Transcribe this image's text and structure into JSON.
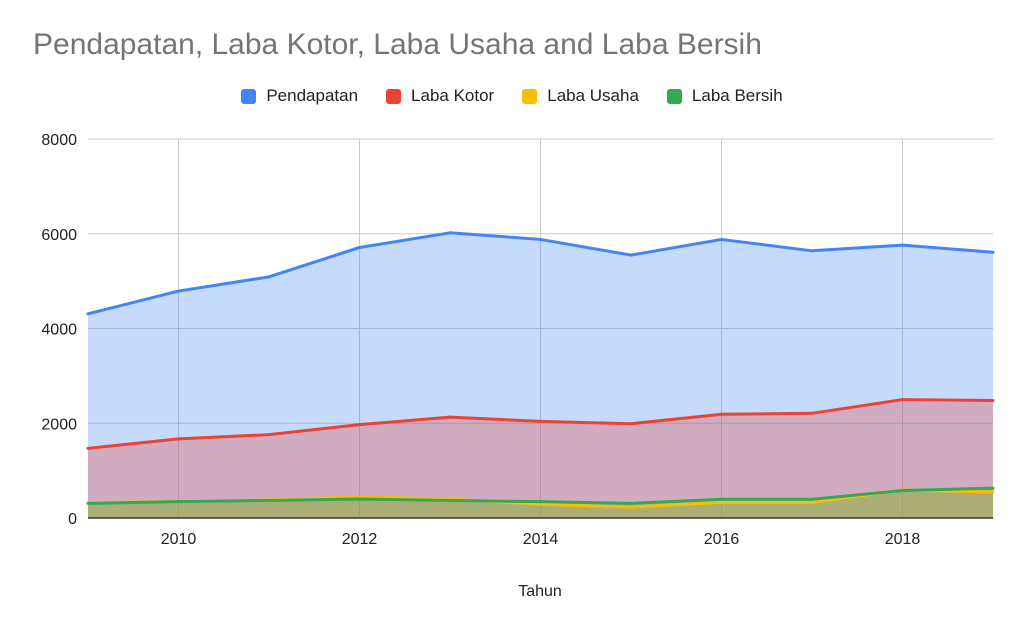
{
  "chart_data": {
    "type": "area",
    "title": "Pendapatan, Laba Kotor, Laba Usaha and Laba Bersih",
    "xlabel": "Tahun",
    "ylabel": "",
    "x": [
      2009,
      2010,
      2011,
      2012,
      2013,
      2014,
      2015,
      2016,
      2017,
      2018,
      2019
    ],
    "xlim": [
      2009,
      2019
    ],
    "xticks": [
      2010,
      2012,
      2014,
      2016,
      2018
    ],
    "ylim": [
      0,
      8000
    ],
    "yticks": [
      0,
      2000,
      4000,
      6000,
      8000
    ],
    "grid": true,
    "legend_position": "top",
    "series": [
      {
        "name": "Pendapatan",
        "color": "#4285f4",
        "values": [
          4310,
          4790,
          5090,
          5710,
          6020,
          5880,
          5550,
          5880,
          5640,
          5760,
          5610
        ]
      },
      {
        "name": "Laba Kotor",
        "color": "#ea4335",
        "values": [
          1470,
          1670,
          1760,
          1970,
          2130,
          2040,
          1990,
          2190,
          2210,
          2500,
          2480
        ]
      },
      {
        "name": "Laba Usaha",
        "color": "#fbbc04",
        "values": [
          320,
          350,
          380,
          450,
          400,
          290,
          230,
          330,
          330,
          590,
          550
        ]
      },
      {
        "name": "Laba Bersih",
        "color": "#34a853",
        "values": [
          310,
          345,
          370,
          400,
          370,
          345,
          310,
          395,
          395,
          580,
          630
        ]
      }
    ]
  }
}
